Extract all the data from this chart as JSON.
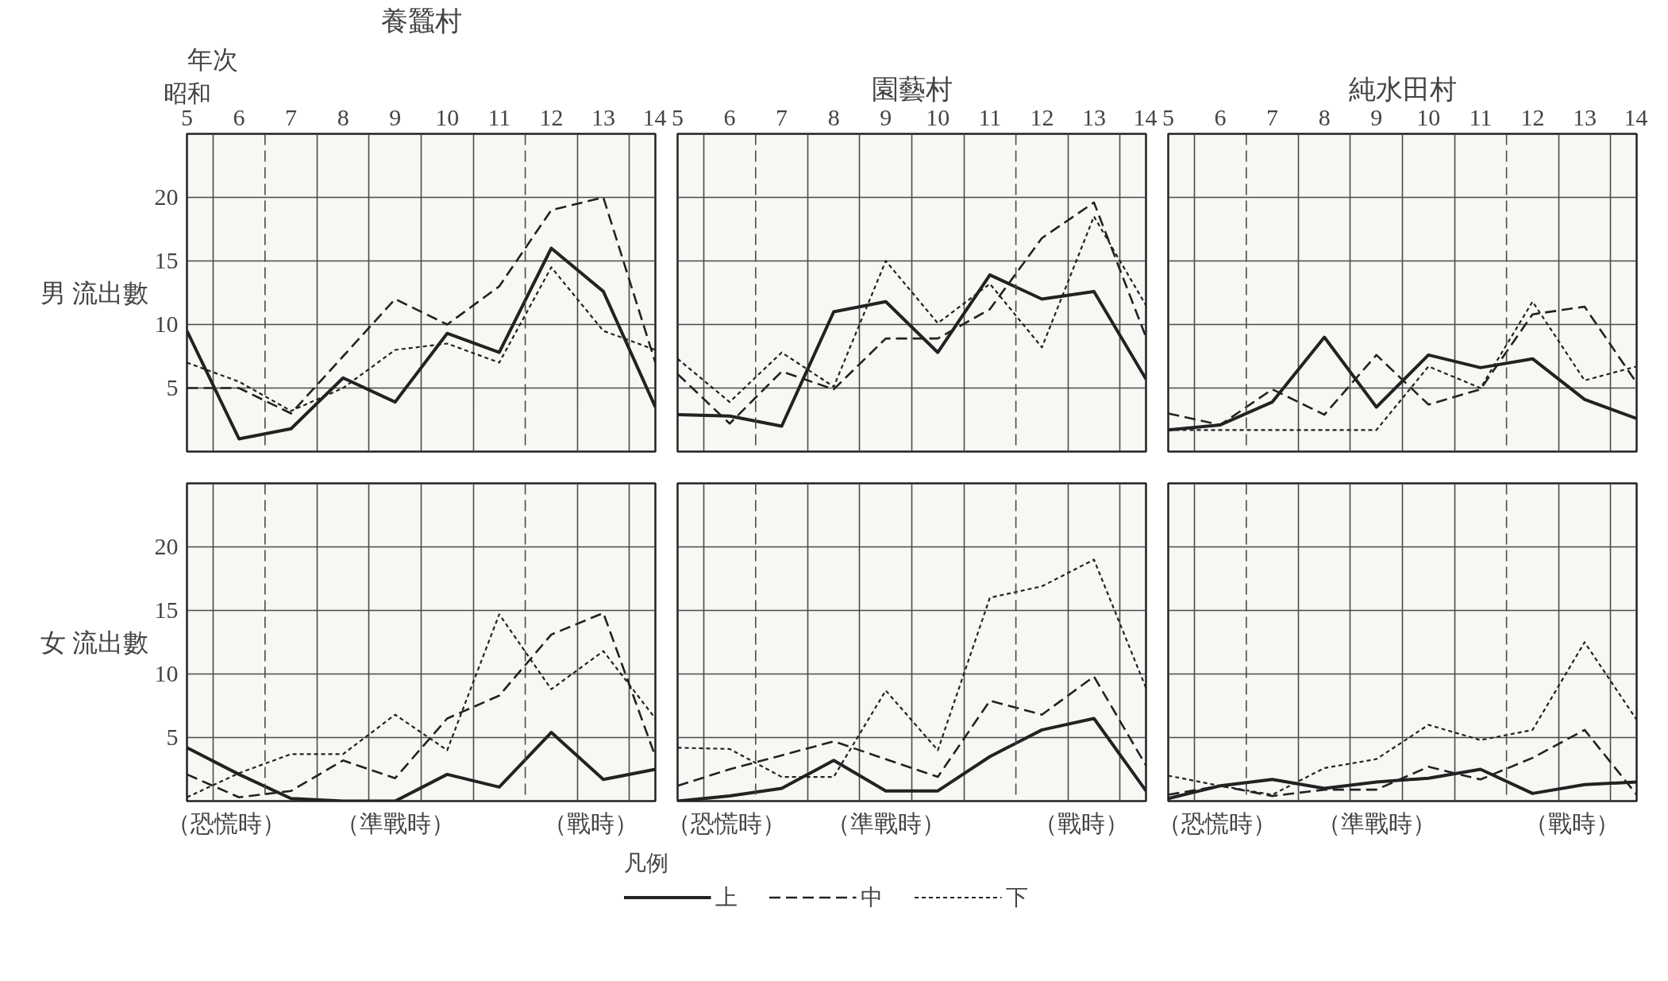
{
  "chart_data": [
    {
      "type": "line",
      "title": "養蠶村",
      "xlabel": "昭和",
      "ylabel": "男 流出數",
      "annotations": [
        "年次"
      ],
      "x": [
        5,
        6,
        7,
        8,
        9,
        10,
        11,
        12,
        13,
        14
      ],
      "xlim": [
        5,
        14
      ],
      "xticks": [
        5,
        6,
        7,
        8,
        9,
        10,
        11,
        12,
        13,
        14
      ],
      "ylim": [
        0,
        25
      ],
      "yticks": [
        5,
        10,
        15,
        20
      ],
      "grid": true,
      "ref_lines": [
        {
          "axis": "x",
          "value": 6.5,
          "line_style": "dashed"
        },
        {
          "axis": "x",
          "value": 11.5,
          "line_style": "dashed"
        }
      ],
      "series": [
        {
          "color": "#222222",
          "line_style": "solid",
          "values": [
            9.5,
            1,
            1.8,
            5.8,
            3.9,
            9.3,
            7.8,
            16,
            12.6,
            3.5
          ]
        },
        {
          "color": "#222222",
          "line_style": "dashed",
          "values": [
            5,
            5,
            3,
            7.5,
            12,
            10,
            13,
            19,
            20,
            7
          ]
        },
        {
          "color": "#222222",
          "line_style": "dotted",
          "values": [
            7,
            5.5,
            3.2,
            5,
            8,
            8.5,
            7,
            14.5,
            9.5,
            8
          ]
        }
      ]
    },
    {
      "type": "line",
      "title": "園藝村",
      "tick_labels": "x",
      "x": [
        5,
        6,
        7,
        8,
        9,
        10,
        11,
        12,
        13,
        14
      ],
      "xlim": [
        5,
        14
      ],
      "xticks": [
        5,
        6,
        7,
        8,
        9,
        10,
        11,
        12,
        13,
        14
      ],
      "ylim": [
        0,
        25
      ],
      "yticks": [
        5,
        10,
        15,
        20
      ],
      "grid": true,
      "ref_lines": [
        {
          "axis": "x",
          "value": 6.5,
          "line_style": "dashed"
        },
        {
          "axis": "x",
          "value": 11.5,
          "line_style": "dashed"
        }
      ],
      "series": [
        {
          "color": "#222222",
          "line_style": "solid",
          "values": [
            2.9,
            2.8,
            2,
            11,
            11.8,
            7.8,
            13.9,
            12,
            12.6,
            5.7
          ]
        },
        {
          "color": "#222222",
          "line_style": "dashed",
          "values": [
            6.1,
            2.2,
            6.3,
            4.9,
            8.9,
            8.9,
            11.2,
            16.8,
            19.6,
            9
          ]
        },
        {
          "color": "#222222",
          "line_style": "dotted",
          "values": [
            7.3,
            3.9,
            7.8,
            5.1,
            15,
            10.1,
            13.2,
            8.2,
            18.5,
            11.5
          ]
        }
      ]
    },
    {
      "type": "line",
      "title": "純水田村",
      "tick_labels": "x",
      "x": [
        5,
        6,
        7,
        8,
        9,
        10,
        11,
        12,
        13,
        14
      ],
      "xlim": [
        5,
        14
      ],
      "xticks": [
        5,
        6,
        7,
        8,
        9,
        10,
        11,
        12,
        13,
        14
      ],
      "ylim": [
        0,
        25
      ],
      "yticks": [
        5,
        10,
        15,
        20
      ],
      "grid": true,
      "ref_lines": [
        {
          "axis": "x",
          "value": 6.5,
          "line_style": "dashed"
        },
        {
          "axis": "x",
          "value": 11.5,
          "line_style": "dashed"
        }
      ],
      "series": [
        {
          "color": "#222222",
          "line_style": "solid",
          "values": [
            1.7,
            2.1,
            3.9,
            9,
            3.5,
            7.6,
            6.6,
            7.3,
            4.1,
            2.6
          ]
        },
        {
          "color": "#222222",
          "line_style": "dashed",
          "values": [
            3,
            2.1,
            4.9,
            2.9,
            7.6,
            3.7,
            4.9,
            10.8,
            11.4,
            5.4
          ]
        },
        {
          "color": "#222222",
          "line_style": "dotted",
          "values": [
            1.7,
            1.7,
            1.7,
            1.7,
            1.7,
            6.7,
            5,
            11.8,
            5.6,
            6.7
          ]
        }
      ]
    },
    {
      "type": "line",
      "ylabel": "女 流出數",
      "tick_labels": "y",
      "annotations": [
        "（恐慌時）",
        "（準戰時）",
        "（戰時）"
      ],
      "x": [
        5,
        6,
        7,
        8,
        9,
        10,
        11,
        12,
        13,
        14
      ],
      "xlim": [
        5,
        14
      ],
      "xticks": [
        5,
        6,
        7,
        8,
        9,
        10,
        11,
        12,
        13,
        14
      ],
      "ylim": [
        0,
        25
      ],
      "yticks": [
        5,
        10,
        15,
        20
      ],
      "grid": true,
      "ref_lines": [
        {
          "axis": "x",
          "value": 6.5,
          "line_style": "dashed"
        },
        {
          "axis": "x",
          "value": 11.5,
          "line_style": "dashed"
        }
      ],
      "series": [
        {
          "color": "#222222",
          "line_style": "solid",
          "values": [
            4.2,
            2.1,
            0.2,
            0,
            0,
            2.1,
            1.1,
            5.4,
            1.7,
            2.5
          ]
        },
        {
          "color": "#222222",
          "line_style": "dashed",
          "values": [
            2.1,
            0.3,
            0.8,
            3.2,
            1.8,
            6.5,
            8.3,
            13.1,
            14.8,
            3.5
          ]
        },
        {
          "color": "#222222",
          "line_style": "dotted",
          "values": [
            0.3,
            2.2,
            3.7,
            3.7,
            6.8,
            4,
            14.7,
            8.8,
            11.8,
            6.5
          ]
        }
      ]
    },
    {
      "type": "line",
      "tick_labels": false,
      "legend": "bottom",
      "legend_title": "凡例",
      "annotations": [
        "（恐慌時）",
        "（準戰時）",
        "（戰時）"
      ],
      "x": [
        5,
        6,
        7,
        8,
        9,
        10,
        11,
        12,
        13,
        14
      ],
      "xlim": [
        5,
        14
      ],
      "xticks": [
        5,
        6,
        7,
        8,
        9,
        10,
        11,
        12,
        13,
        14
      ],
      "ylim": [
        0,
        25
      ],
      "yticks": [
        5,
        10,
        15,
        20
      ],
      "grid": true,
      "ref_lines": [
        {
          "axis": "x",
          "value": 6.5,
          "line_style": "dashed"
        },
        {
          "axis": "x",
          "value": 11.5,
          "line_style": "dashed"
        }
      ],
      "series": [
        {
          "name": "上",
          "color": "#222222",
          "line_style": "solid",
          "values": [
            0,
            0.4,
            1,
            3.2,
            0.8,
            0.8,
            3.5,
            5.6,
            6.5,
            0.8
          ]
        },
        {
          "name": "中",
          "color": "#222222",
          "line_style": "dashed",
          "values": [
            1.2,
            2.5,
            3.6,
            4.7,
            3.3,
            1.9,
            7.9,
            6.8,
            9.8,
            2.8
          ]
        },
        {
          "name": "下",
          "color": "#222222",
          "line_style": "dotted",
          "values": [
            4.2,
            4.1,
            1.9,
            1.9,
            8.7,
            4,
            16,
            16.9,
            19,
            8.9
          ]
        }
      ]
    },
    {
      "type": "line",
      "tick_labels": false,
      "annotations": [
        "（恐慌時）",
        "（準戰時）",
        "（戰時）"
      ],
      "x": [
        5,
        6,
        7,
        8,
        9,
        10,
        11,
        12,
        13,
        14
      ],
      "xlim": [
        5,
        14
      ],
      "xticks": [
        5,
        6,
        7,
        8,
        9,
        10,
        11,
        12,
        13,
        14
      ],
      "ylim": [
        0,
        25
      ],
      "yticks": [
        5,
        10,
        15,
        20
      ],
      "grid": true,
      "ref_lines": [
        {
          "axis": "x",
          "value": 6.5,
          "line_style": "dashed"
        },
        {
          "axis": "x",
          "value": 11.5,
          "line_style": "dashed"
        }
      ],
      "series": [
        {
          "color": "#222222",
          "line_style": "solid",
          "values": [
            0.2,
            1.2,
            1.7,
            1,
            1.5,
            1.8,
            2.5,
            0.6,
            1.3,
            1.5
          ]
        },
        {
          "color": "#222222",
          "line_style": "dashed",
          "values": [
            0.5,
            1.2,
            0.4,
            0.9,
            0.9,
            2.7,
            1.7,
            3.4,
            5.6,
            0.5
          ]
        },
        {
          "color": "#222222",
          "line_style": "dotted",
          "values": [
            2,
            1.2,
            0.5,
            2.6,
            3.3,
            6,
            4.8,
            5.6,
            12.5,
            6.4
          ]
        }
      ]
    }
  ]
}
